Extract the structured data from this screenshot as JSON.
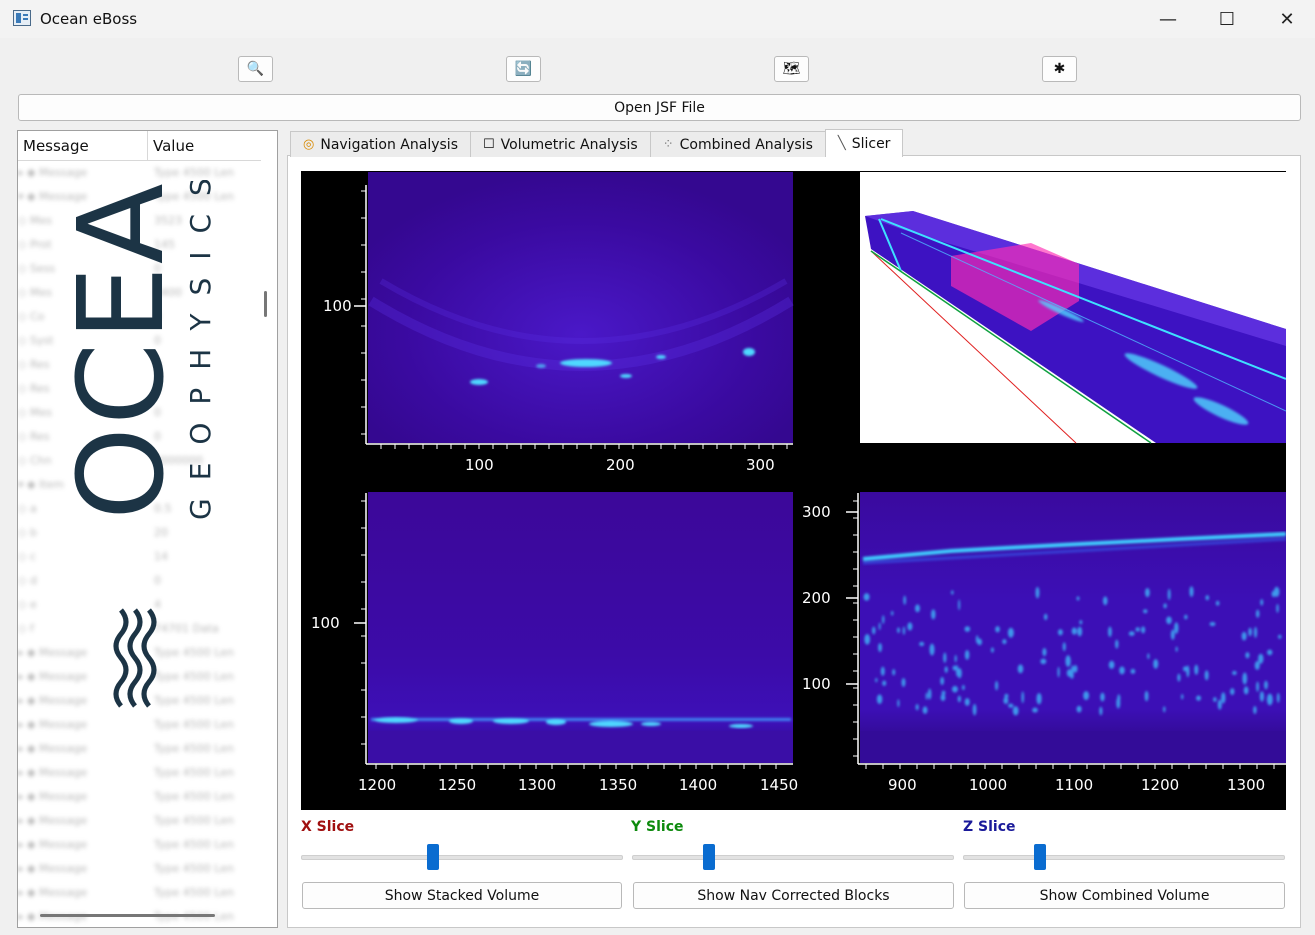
{
  "window": {
    "title": "Ocean eBoss",
    "minimize": "—",
    "maximize": "☐",
    "close": "✕"
  },
  "toolbar": {
    "buttons": [
      {
        "icon": "magnifier-icon",
        "glyph": "🔍"
      },
      {
        "icon": "refresh-icon",
        "glyph": "🔄"
      },
      {
        "icon": "map-icon",
        "glyph": "🗺"
      },
      {
        "icon": "asterisk-icon",
        "glyph": "✱"
      }
    ],
    "open_label": "Open JSF File"
  },
  "tree": {
    "headers": {
      "message": "Message",
      "value": "Value"
    },
    "rows": [
      {
        "message": "▸ ◆ Message",
        "value": "Type 4500 Len"
      },
      {
        "message": "▾ ◆ Message",
        "value": "Type 4500 Len"
      },
      {
        "message": "      ◇ Mes",
        "value": "3523"
      },
      {
        "message": "      ◇ Prot",
        "value": "145"
      },
      {
        "message": "      ◇ Sess",
        "value": "0"
      },
      {
        "message": "      ◇ Mes",
        "value": "4400"
      },
      {
        "message": "      ◇ Co",
        "value": "0"
      },
      {
        "message": "      ◇ Syst",
        "value": "0"
      },
      {
        "message": "      ◇ Res",
        "value": "0"
      },
      {
        "message": "      ◇ Res",
        "value": "0"
      },
      {
        "message": "      ◇ Mes",
        "value": "0"
      },
      {
        "message": "      ◇ Res",
        "value": "0"
      },
      {
        "message": "      ◇ Chn",
        "value": "0000000"
      },
      {
        "message": "  ▾ ◆ Item",
        "value": ""
      },
      {
        "message": "        ◇ a",
        "value": "0.5"
      },
      {
        "message": "        ◇ b",
        "value": "20"
      },
      {
        "message": "        ◇ c",
        "value": "14"
      },
      {
        "message": "        ◇ d",
        "value": "0"
      },
      {
        "message": "        ◇ e",
        "value": "4"
      },
      {
        "message": "        ◇ f",
        "value": "74701 Data"
      },
      {
        "message": "▸ ◆ Message",
        "value": "Type 4500 Len"
      },
      {
        "message": "▸ ◆ Message",
        "value": "Type 4500 Len"
      },
      {
        "message": "▸ ◆ Message",
        "value": "Type 4500 Len"
      },
      {
        "message": "▸ ◆ Message",
        "value": "Type 4500 Len"
      },
      {
        "message": "▸ ◆ Message",
        "value": "Type 4500 Len"
      },
      {
        "message": "▸ ◆ Message",
        "value": "Type 4500 Len"
      },
      {
        "message": "▸ ◆ Message",
        "value": "Type 4500 Len"
      },
      {
        "message": "▸ ◆ Message",
        "value": "Type 4500 Len"
      },
      {
        "message": "▸ ◆ Message",
        "value": "Type 4500 Len"
      },
      {
        "message": "▸ ◆ Message",
        "value": "Type 4500 Len"
      },
      {
        "message": "▸ ◆ Message",
        "value": "Type 4500 Len"
      },
      {
        "message": "▸ ◆ Message",
        "value": "Type 4500 Len"
      }
    ]
  },
  "logo": {
    "word": "OCEAN",
    "sub": "GEOPHYSICS"
  },
  "tabs": [
    {
      "label": "Navigation Analysis",
      "icon": "compass-icon",
      "glyph": "◎"
    },
    {
      "label": "Volumetric Analysis",
      "icon": "cube-icon",
      "glyph": "☐"
    },
    {
      "label": "Combined Analysis",
      "icon": "grid-icon",
      "glyph": "⁘"
    },
    {
      "label": "Slicer",
      "icon": "knife-icon",
      "glyph": "╲",
      "active": true
    }
  ],
  "plots": {
    "top_left": {
      "y_ticks": [
        "100"
      ],
      "x_ticks": [
        "100",
        "200",
        "300"
      ]
    },
    "bottom_left": {
      "y_ticks": [
        "100"
      ],
      "x_ticks": [
        "1200",
        "1250",
        "1300",
        "1350",
        "1400",
        "1450"
      ]
    },
    "bottom_right": {
      "y_ticks": [
        "300",
        "200",
        "100"
      ],
      "x_ticks": [
        "900",
        "1000",
        "1100",
        "1200",
        "1300"
      ]
    }
  },
  "slices": [
    {
      "label": "X Slice",
      "color": "#a01010",
      "value": 0.41
    },
    {
      "label": "Y Slice",
      "color": "#0d8a0d",
      "value": 0.24
    },
    {
      "label": "Z Slice",
      "color": "#1a1a9a",
      "value": 0.24
    }
  ],
  "buttons": {
    "stacked": "Show Stacked Volume",
    "nav": "Show Nav Corrected Blocks",
    "combined": "Show Combined Volume"
  },
  "colors": {
    "plot_bg": "#3c0899",
    "accent": "#0a6cd0"
  }
}
